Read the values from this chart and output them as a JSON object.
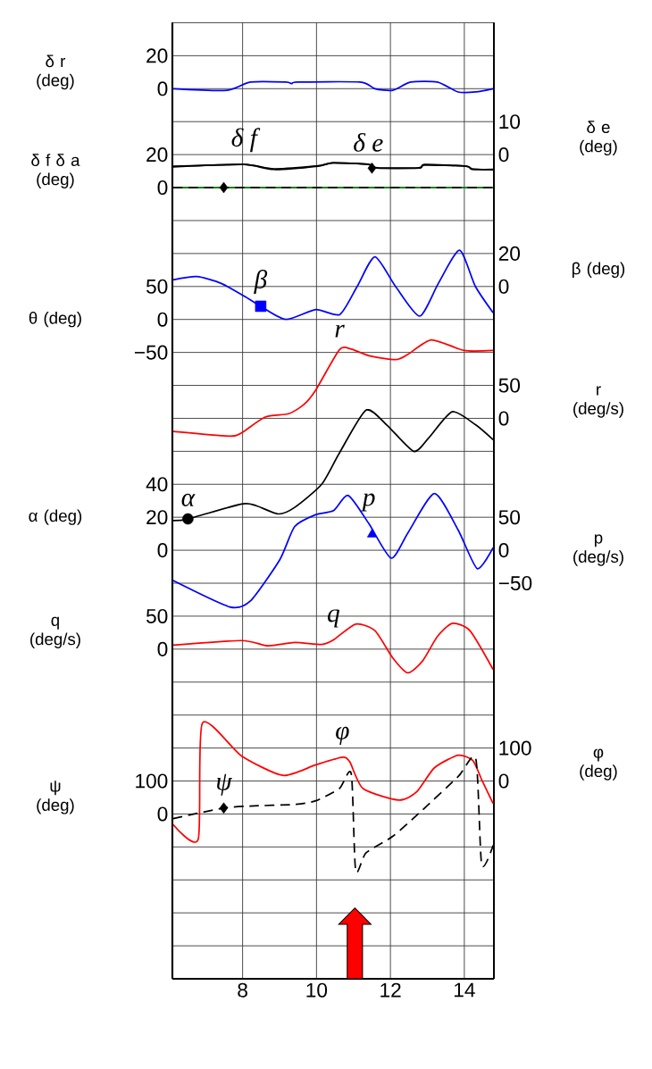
{
  "chart_data": [
    {
      "type": "line",
      "xlim": [
        6.1,
        14.8
      ],
      "xticks": [
        8,
        10,
        12,
        14
      ],
      "ylim": [
        -540,
        40
      ],
      "grid": true,
      "ylabel": "δ r (deg)",
      "yticks": [
        {
          "value": -540,
          "label": null
        },
        {
          "value": -520,
          "label": null
        },
        {
          "value": -500,
          "label": null
        },
        {
          "value": -480,
          "label": null
        },
        {
          "value": -460,
          "label": null
        },
        {
          "value": -440,
          "label": null
        },
        {
          "value": -420,
          "label": null
        },
        {
          "value": -400,
          "label": null
        },
        {
          "value": -380,
          "label": null
        },
        {
          "value": -360,
          "label": null
        },
        {
          "value": -340,
          "label": null
        },
        {
          "value": -320,
          "label": null
        },
        {
          "value": -300,
          "label": null
        },
        {
          "value": -280,
          "label": null
        },
        {
          "value": -260,
          "label": null
        },
        {
          "value": -240,
          "label": null
        },
        {
          "value": -220,
          "label": null
        },
        {
          "value": -200,
          "label": null
        },
        {
          "value": -180,
          "label": null
        },
        {
          "value": -160,
          "label": null
        },
        {
          "value": -140,
          "label": null
        },
        {
          "value": -120,
          "label": null
        },
        {
          "value": -100,
          "label": null
        },
        {
          "value": -80,
          "label": null
        },
        {
          "value": -60,
          "label": null
        },
        {
          "value": -40,
          "label": null
        },
        {
          "value": -20,
          "label": null
        },
        0,
        20,
        {
          "value": 40,
          "label": null
        }
      ],
      "series": [
        {
          "color": "#0000ff",
          "x": [
            6.12,
            7.57,
            8.21,
            9.17,
            9.33,
            9.49,
            11.18,
            11.58,
            12.06,
            12.55,
            13.27,
            13.83,
            14.31,
            14.78
          ],
          "values": [
            0,
            -1,
            4,
            4,
            3,
            4,
            4,
            0,
            -1,
            4,
            4,
            -2,
            -2,
            0
          ]
        }
      ]
    },
    {
      "type": "line",
      "xlim": [
        6.1,
        14.8
      ],
      "ylim": [
        -480,
        100
      ],
      "yticks": [
        0,
        20
      ],
      "ylabel": "δ f δ a (deg)",
      "tick_labels": "y",
      "annotations": [
        "δ f"
      ],
      "series": [
        {
          "color": "#000000",
          "x": [
            6.12,
            8.04,
            8.84,
            10.04,
            10.44,
            11.4,
            11.64,
            12.77,
            12.93,
            14.05,
            14.21,
            14.78
          ],
          "values": [
            13,
            14,
            11,
            13,
            15,
            14,
            12,
            12,
            14,
            13,
            11,
            11
          ]
        },
        {
          "color": "#008000",
          "x": [
            6.12,
            14.78
          ],
          "values": [
            0,
            0
          ]
        },
        {
          "color": "#000000",
          "line_style": "dashed",
          "x": [
            6.12,
            14.78
          ],
          "values": [
            0,
            0
          ]
        },
        {
          "type": "scatter",
          "marker": "diamond",
          "color": "#000000",
          "x": [
            7.49
          ],
          "values": [
            0
          ]
        }
      ]
    },
    {
      "type": "line",
      "xlim": [
        6.1,
        14.8
      ],
      "y2lim": [
        -250,
        40
      ],
      "y2ticks": [
        0,
        10
      ],
      "y2label": "δ e (deg)",
      "tick_labels": "y",
      "annotations": [
        "δ e"
      ],
      "series": [
        {
          "axis": "y2",
          "color": "#000000",
          "x": [
            6.12,
            8.04,
            8.84,
            10.04,
            10.44,
            11.4,
            11.64,
            12.77,
            12.93,
            14.05,
            14.21,
            14.78
          ],
          "values": [
            -3.7,
            -3.0,
            -4.3,
            -3.4,
            -2.5,
            -2.9,
            -4.1,
            -4.1,
            -3.2,
            -3.5,
            -4.3,
            -4.6
          ]
        },
        {
          "axis": "y2",
          "type": "scatter",
          "marker": "diamond",
          "color": "#000000",
          "x": [
            11.5
          ],
          "values": [
            -4.1
          ]
        }
      ]
    },
    {
      "type": "line",
      "xlim": [
        6.1,
        14.8
      ],
      "y2lim": [
        -420,
        160
      ],
      "y2ticks": [
        0,
        20
      ],
      "y2label": "β (deg)",
      "tick_labels": "y",
      "annotations": [
        "β"
      ],
      "series": [
        {
          "axis": "y2",
          "color": "#0000ff",
          "x": [
            6.12,
            6.76,
            7.41,
            8.05,
            8.49,
            9.17,
            9.98,
            10.63,
            11.1,
            11.58,
            12.14,
            12.79,
            13.3,
            13.87,
            14.3,
            14.78
          ],
          "values": [
            4,
            6,
            2,
            -6,
            -12,
            -20,
            -14,
            -17,
            0,
            18,
            0,
            -18,
            2,
            22,
            0,
            -16
          ]
        },
        {
          "axis": "y2",
          "type": "scatter",
          "marker": "square",
          "color": "#0000ff",
          "x": [
            8.49
          ],
          "values": [
            -12
          ]
        }
      ]
    },
    {
      "type": "line",
      "xlim": [
        6.1,
        14.8
      ],
      "ylim": [
        -1000,
        450
      ],
      "yticks": [
        {
          "value": -50,
          "label": "−50"
        },
        0,
        50
      ],
      "ylabel": "θ (deg)",
      "tick_labels": "y"
    },
    {
      "type": "line",
      "xlim": [
        6.1,
        14.8
      ],
      "y2lim": [
        -850,
        600
      ],
      "y2ticks": [
        0,
        50
      ],
      "y2label": "r (deg/s)",
      "tick_labels": "y",
      "annotations": [
        "r"
      ],
      "series": [
        {
          "axis": "y2",
          "color": "#ff0000",
          "x": [
            6.12,
            7.65,
            7.97,
            8.61,
            9.25,
            9.66,
            9.98,
            10.62,
            10.94,
            11.42,
            12.14,
            12.47,
            13.11,
            13.99,
            14.78
          ],
          "values": [
            -20,
            -27,
            -22,
            2,
            7,
            21,
            43,
            104,
            105,
            95,
            89,
            97,
            119,
            103,
            103
          ]
        }
      ]
    },
    {
      "type": "line",
      "xlim": [
        6.1,
        14.8
      ],
      "ylim": [
        -260,
        320
      ],
      "yticks": [
        0,
        20,
        40
      ],
      "ylabel": "α (deg)",
      "tick_labels": "y",
      "annotations": [
        "α"
      ],
      "series": [
        {
          "color": "#000000",
          "x": [
            6.12,
            6.52,
            7.97,
            8.37,
            8.97,
            9.41,
            10.14,
            10.62,
            11.34,
            11.9,
            12.63,
            13.03,
            13.67,
            14.31,
            14.78
          ],
          "values": [
            18,
            19,
            28,
            27,
            22,
            26,
            40,
            59,
            85,
            76,
            60,
            68,
            84,
            76,
            67
          ]
        },
        {
          "type": "scatter",
          "marker": "circle",
          "color": "#000000",
          "x": [
            6.52
          ],
          "values": [
            19
          ]
        }
      ]
    },
    {
      "type": "line",
      "xlim": [
        6.1,
        14.8
      ],
      "y2lim": [
        -650,
        800
      ],
      "y2ticks": [
        {
          "value": -50,
          "label": "−50"
        },
        0,
        50
      ],
      "y2label": "p (deg/s)",
      "tick_labels": "y",
      "annotations": [
        "p"
      ],
      "series": [
        {
          "axis": "y2",
          "color": "#0000ff",
          "x": [
            6.12,
            7.65,
            8.21,
            9.01,
            9.41,
            9.98,
            10.46,
            10.86,
            11.42,
            12.02,
            12.47,
            13.19,
            13.83,
            14.35,
            14.78
          ],
          "values": [
            -46,
            -86,
            -77,
            -14,
            36,
            54,
            60,
            83,
            40,
            -12,
            26,
            86,
            31,
            -28,
            4
          ]
        },
        {
          "axis": "y2",
          "type": "scatter",
          "marker": "triangle",
          "color": "#0000ff",
          "x": [
            11.5
          ],
          "values": [
            24
          ]
        }
      ]
    },
    {
      "type": "line",
      "xlim": [
        6.1,
        14.8
      ],
      "ylim": [
        -500,
        950
      ],
      "yticks": [
        0,
        50
      ],
      "ylabel": "q (deg/s)",
      "tick_labels": "y",
      "annotations": [
        "q"
      ],
      "series": [
        {
          "color": "#ff0000",
          "x": [
            6.12,
            7.97,
            8.69,
            9.41,
            10.14,
            10.46,
            11.06,
            11.58,
            12.06,
            12.47,
            12.87,
            13.27,
            13.67,
            14.15,
            14.78
          ],
          "values": [
            6,
            13,
            5,
            10,
            7,
            14,
            38,
            28,
            -13,
            -36,
            -18,
            19,
            39,
            28,
            -31
          ]
        }
      ]
    },
    {
      "type": "line",
      "xlim": [
        6.1,
        14.8
      ],
      "y2lim": [
        -600,
        2300
      ],
      "y2ticks": [
        0,
        100
      ],
      "y2label": "φ (deg)",
      "tick_labels": "y",
      "annotations": [
        "φ"
      ],
      "series": [
        {
          "axis": "y2",
          "color": "#ff0000",
          "x": [
            6.12,
            6.8,
            6.91,
            7.97,
            9.09,
            9.98,
            10.7,
            10.9,
            11.26,
            12.23,
            12.71,
            13.19,
            13.83,
            14.23,
            14.47,
            14.78
          ],
          "values": [
            -132,
            -177,
            175,
            76,
            17,
            49,
            72,
            58,
            -23,
            -58,
            -33,
            40,
            78,
            62,
            4,
            -69
          ]
        }
      ]
    },
    {
      "type": "line",
      "xlim": [
        6.1,
        14.8
      ],
      "ylim": [
        -500,
        2400
      ],
      "yticks": [
        0,
        100
      ],
      "ylabel": "ψ (deg)",
      "tick_labels": "y",
      "annotations": [
        "ψ"
      ],
      "series": [
        {
          "color": "#000000",
          "line_style": "dashed",
          "x": [
            6.12,
            7.49,
            8.21,
            9.41,
            9.98,
            10.62,
            10.94,
            11.06,
            11.34,
            12.06,
            12.79,
            13.83,
            14.31,
            14.47,
            14.78
          ],
          "values": [
            -14,
            18,
            24,
            29,
            40,
            77,
            122,
            -172,
            -118,
            -68,
            4,
            113,
            167,
            -154,
            -95
          ]
        },
        {
          "type": "scatter",
          "marker": "diamond",
          "color": "#000000",
          "x": [
            7.49
          ],
          "values": [
            18
          ]
        }
      ]
    }
  ]
}
